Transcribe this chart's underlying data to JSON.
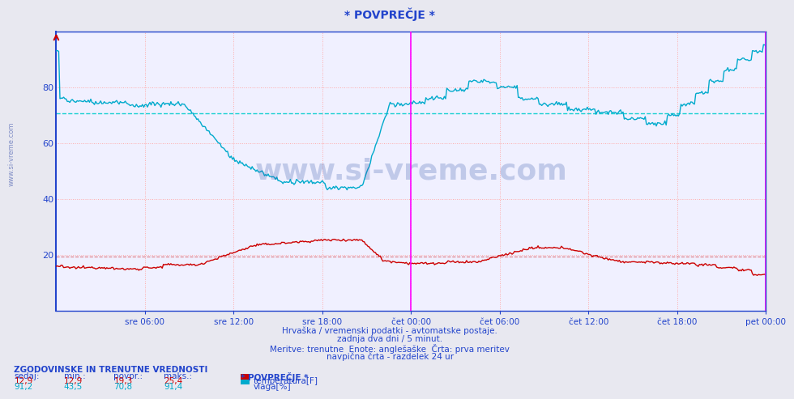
{
  "title": "* POVPREČJE *",
  "bg_color": "#e8e8f0",
  "plot_bg_color": "#f0f0ff",
  "grid_color": "#ffaaaa",
  "grid_style": ":",
  "xlabel_color": "#2244cc",
  "tick_color": "#2244cc",
  "axis_color": "#2244cc",
  "temp_color": "#cc0000",
  "hum_color": "#00aacc",
  "hum_avg_color": "#00cccc",
  "temp_avg_color": "#cc0000",
  "vline_color": "#ff00ff",
  "ylim": [
    0,
    100
  ],
  "yticks": [
    20,
    40,
    60,
    80
  ],
  "x_ticks_labels": [
    "sre 06:00",
    "sre 12:00",
    "sre 18:00",
    "čet 00:00",
    "čet 06:00",
    "čet 12:00",
    "čet 18:00",
    "pet 00:00"
  ],
  "x_ticks_pos": [
    0.125,
    0.25,
    0.375,
    0.5,
    0.625,
    0.75,
    0.875,
    1.0
  ],
  "vline_pos": 0.5,
  "subtitle1": "Hrvaška / vremenski podatki - avtomatske postaje.",
  "subtitle2": "zadnja dva dni / 5 minut.",
  "subtitle3": "Meritve: trenutne  Enote: anglešaške  Črta: prva meritev",
  "subtitle4": "navpična črta - razdelek 24 ur",
  "table_header": "ZGODOVINSKE IN TRENUTNE VREDNOSTI",
  "col_headers": [
    "sedaj:",
    "min.:",
    "povpr.:",
    "maks.:"
  ],
  "row1": [
    "12,9",
    "12,9",
    "19,3",
    "25,4"
  ],
  "row2": [
    "91,2",
    "43,5",
    "70,8",
    "91,4"
  ],
  "legend_label1": "temperatura[F]",
  "legend_label2": "vlaga[%]",
  "legend_title": "* POVPREČJE *",
  "watermark": "www.si-vreme.com",
  "temp_avg": 19.3,
  "hum_avg": 70.8,
  "side_watermark": "www.si-vreme.com"
}
